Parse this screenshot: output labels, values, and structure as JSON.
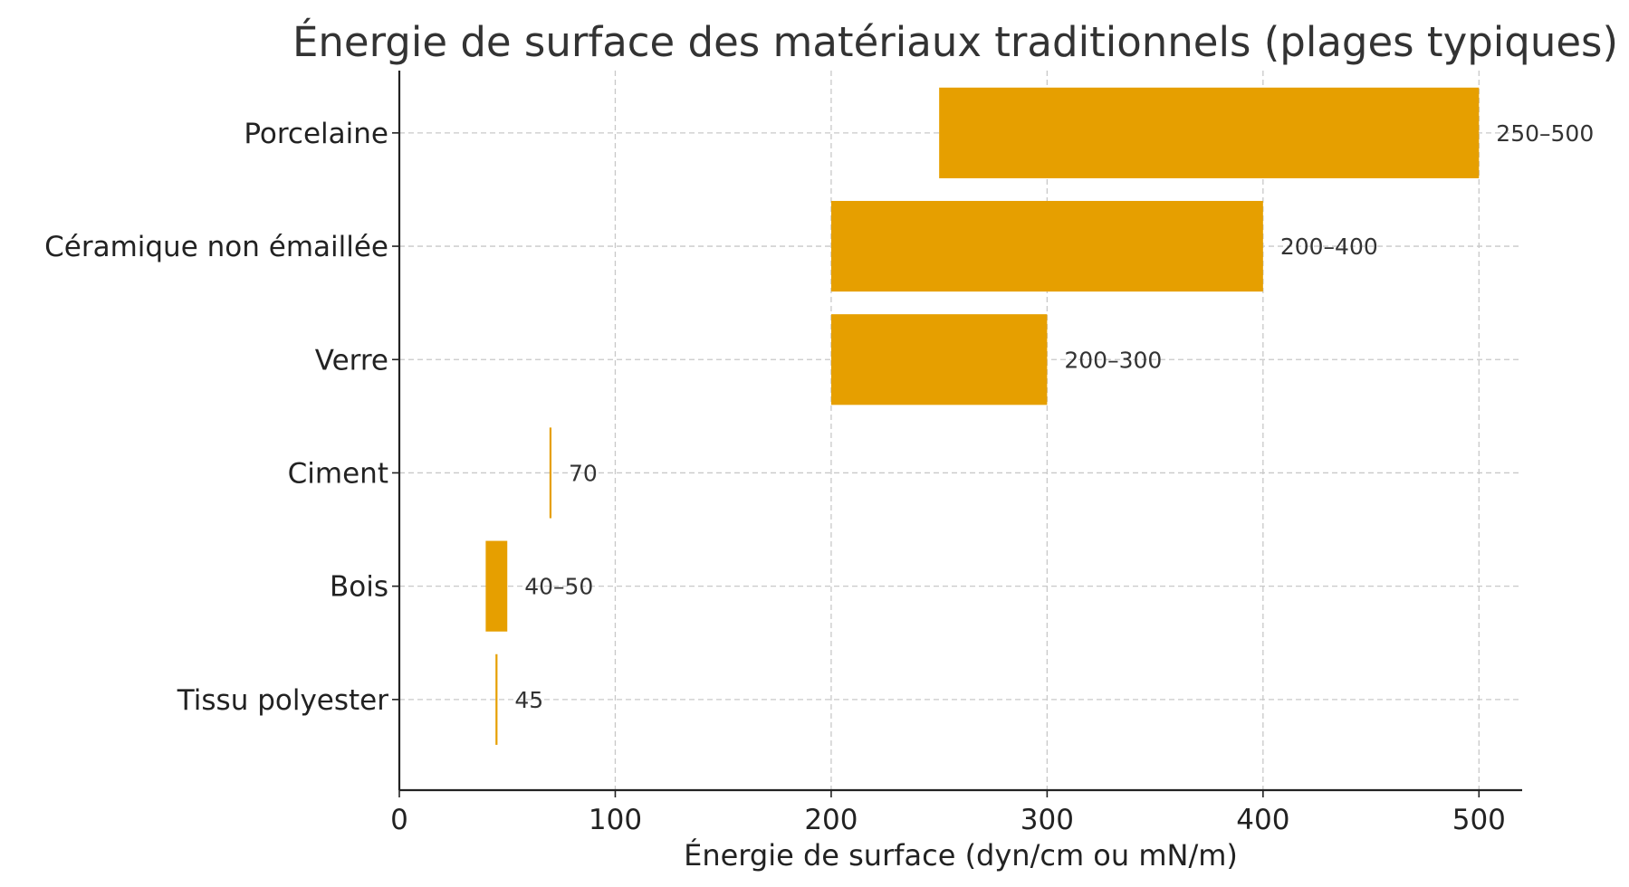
{
  "chart_data": {
    "type": "bar",
    "orientation": "horizontal-range",
    "title": "Énergie de surface des matériaux traditionnels (plages typiques)",
    "xlabel": "Énergie de surface (dyn/cm ou mN/m)",
    "ylabel": "",
    "xlim": [
      0,
      520
    ],
    "xticks": [
      0,
      100,
      200,
      300,
      400,
      500
    ],
    "grid": true,
    "color": "#E69F00",
    "categories": [
      "Porcelaine",
      "Céramique non émaillée",
      "Verre",
      "Ciment",
      "Bois",
      "Tissu polyester"
    ],
    "ranges": [
      [
        250,
        500
      ],
      [
        200,
        400
      ],
      [
        200,
        300
      ],
      [
        70,
        70
      ],
      [
        40,
        50
      ],
      [
        45,
        45
      ]
    ],
    "labels": [
      "250–500",
      "200–400",
      "200–300",
      "70",
      "40–50",
      "45"
    ]
  }
}
